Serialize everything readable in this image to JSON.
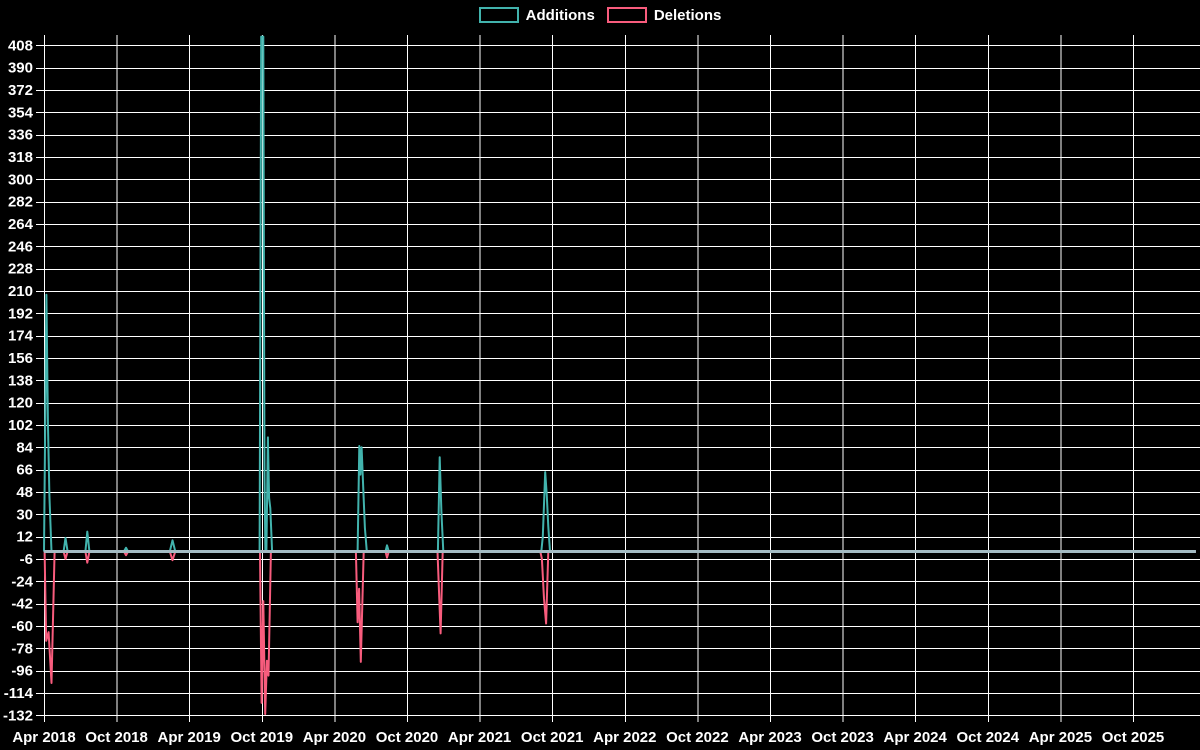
{
  "legend": {
    "additions_label": "Additions",
    "deletions_label": "Deletions"
  },
  "chart_data": {
    "type": "line",
    "title": "",
    "legend": [
      "Additions",
      "Deletions"
    ],
    "legend_position": "top-center",
    "legend_style": "hollow-outlined-boxes",
    "background_color": "#000000",
    "grid_color": "#ffffff",
    "grid": "on",
    "text_color": "#ffffff",
    "zero_line_color": "#a4bbc3",
    "x_axis": {
      "label": "",
      "unit": "months since Apr 2018",
      "tick_months": [
        0,
        6,
        12,
        18,
        24,
        30,
        36,
        42,
        48,
        54,
        60,
        66,
        72,
        78,
        84,
        90
      ],
      "tick_labels": [
        "Apr 2018",
        "Oct 2018",
        "Apr 2019",
        "Oct 2019",
        "Apr 2020",
        "Oct 2020",
        "Apr 2021",
        "Oct 2021",
        "Apr 2022",
        "Oct 2022",
        "Apr 2023",
        "Oct 2023",
        "Apr 2024",
        "Oct 2024",
        "Apr 2025",
        "Oct 2025"
      ],
      "data_end_month": 95.2
    },
    "y_axis": {
      "label": "",
      "ticks": [
        408,
        390,
        372,
        354,
        336,
        318,
        300,
        282,
        264,
        246,
        228,
        210,
        192,
        174,
        156,
        138,
        120,
        102,
        84,
        66,
        48,
        30,
        12,
        -6,
        -24,
        -42,
        -60,
        -78,
        -96,
        -114,
        -132
      ],
      "interval": 18,
      "min": -138,
      "max": 416
    },
    "series": [
      {
        "name": "Additions",
        "color": "#42b3ad",
        "points": [
          [
            0.0,
            0
          ],
          [
            0.2,
            207
          ],
          [
            0.32,
            105
          ],
          [
            0.45,
            45
          ],
          [
            0.62,
            0
          ],
          [
            1.62,
            0
          ],
          [
            1.78,
            11
          ],
          [
            1.95,
            0
          ],
          [
            3.42,
            0
          ],
          [
            3.58,
            16
          ],
          [
            3.75,
            0
          ],
          [
            6.6,
            0
          ],
          [
            6.78,
            3
          ],
          [
            6.95,
            0
          ],
          [
            10.4,
            0
          ],
          [
            10.62,
            9
          ],
          [
            10.85,
            0
          ],
          [
            17.82,
            0
          ],
          [
            17.95,
            415
          ],
          [
            18.12,
            415
          ],
          [
            18.22,
            60
          ],
          [
            18.3,
            0
          ],
          [
            18.38,
            0
          ],
          [
            18.5,
            92
          ],
          [
            18.6,
            43
          ],
          [
            18.7,
            35
          ],
          [
            18.85,
            0
          ],
          [
            25.92,
            0
          ],
          [
            26.06,
            85
          ],
          [
            26.15,
            62
          ],
          [
            26.25,
            84
          ],
          [
            26.38,
            52
          ],
          [
            26.52,
            19
          ],
          [
            26.68,
            0
          ],
          [
            28.22,
            0
          ],
          [
            28.35,
            5
          ],
          [
            28.5,
            0
          ],
          [
            32.55,
            0
          ],
          [
            32.7,
            76
          ],
          [
            32.84,
            32
          ],
          [
            33.0,
            0
          ],
          [
            41.1,
            0
          ],
          [
            41.22,
            12
          ],
          [
            41.42,
            64
          ],
          [
            41.55,
            45
          ],
          [
            41.68,
            20
          ],
          [
            41.82,
            0
          ],
          [
            95.2,
            0
          ]
        ]
      },
      {
        "name": "Deletions",
        "color": "#f85c7d",
        "points": [
          [
            0.05,
            0
          ],
          [
            0.18,
            -72
          ],
          [
            0.38,
            -65
          ],
          [
            0.62,
            -106
          ],
          [
            0.88,
            0
          ],
          [
            1.62,
            0
          ],
          [
            1.78,
            -6
          ],
          [
            1.95,
            0
          ],
          [
            3.42,
            0
          ],
          [
            3.58,
            -9
          ],
          [
            3.75,
            0
          ],
          [
            6.6,
            0
          ],
          [
            6.78,
            -3
          ],
          [
            6.95,
            0
          ],
          [
            10.4,
            0
          ],
          [
            10.62,
            -7
          ],
          [
            10.85,
            0
          ],
          [
            17.85,
            0
          ],
          [
            17.98,
            -122
          ],
          [
            18.12,
            -40
          ],
          [
            18.28,
            -131
          ],
          [
            18.42,
            -88
          ],
          [
            18.55,
            -100
          ],
          [
            18.75,
            0
          ],
          [
            25.78,
            0
          ],
          [
            25.92,
            -57
          ],
          [
            26.04,
            -30
          ],
          [
            26.18,
            -89
          ],
          [
            26.42,
            0
          ],
          [
            28.22,
            0
          ],
          [
            28.35,
            -5
          ],
          [
            28.5,
            0
          ],
          [
            32.52,
            0
          ],
          [
            32.64,
            -30
          ],
          [
            32.78,
            -66
          ],
          [
            32.95,
            0
          ],
          [
            41.02,
            0
          ],
          [
            41.15,
            -6
          ],
          [
            41.32,
            -38
          ],
          [
            41.5,
            -58
          ],
          [
            41.68,
            0
          ],
          [
            95.2,
            0
          ]
        ]
      }
    ]
  }
}
